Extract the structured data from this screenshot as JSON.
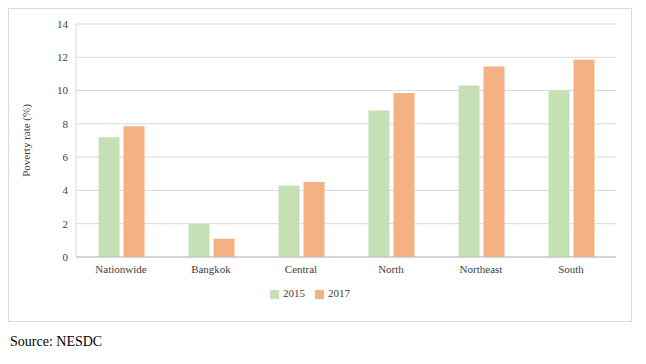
{
  "chart_data": {
    "type": "bar",
    "categories": [
      "Nationwide",
      "Bangkok",
      "Central",
      "North",
      "Northeast",
      "South"
    ],
    "series": [
      {
        "name": "2015",
        "color": "#c5e0b4",
        "values": [
          7.2,
          2.0,
          4.3,
          8.8,
          10.3,
          10.0
        ]
      },
      {
        "name": "2017",
        "color": "#f4b183",
        "values": [
          7.85,
          1.1,
          4.5,
          9.85,
          11.45,
          11.85
        ]
      }
    ],
    "y_label": "Poverty rate (%)",
    "ylim": [
      0,
      14
    ],
    "yticks": [
      0,
      2,
      4,
      6,
      8,
      10,
      12,
      14
    ],
    "grid": true,
    "legend": "bottom",
    "source": "Source: NESDC"
  }
}
